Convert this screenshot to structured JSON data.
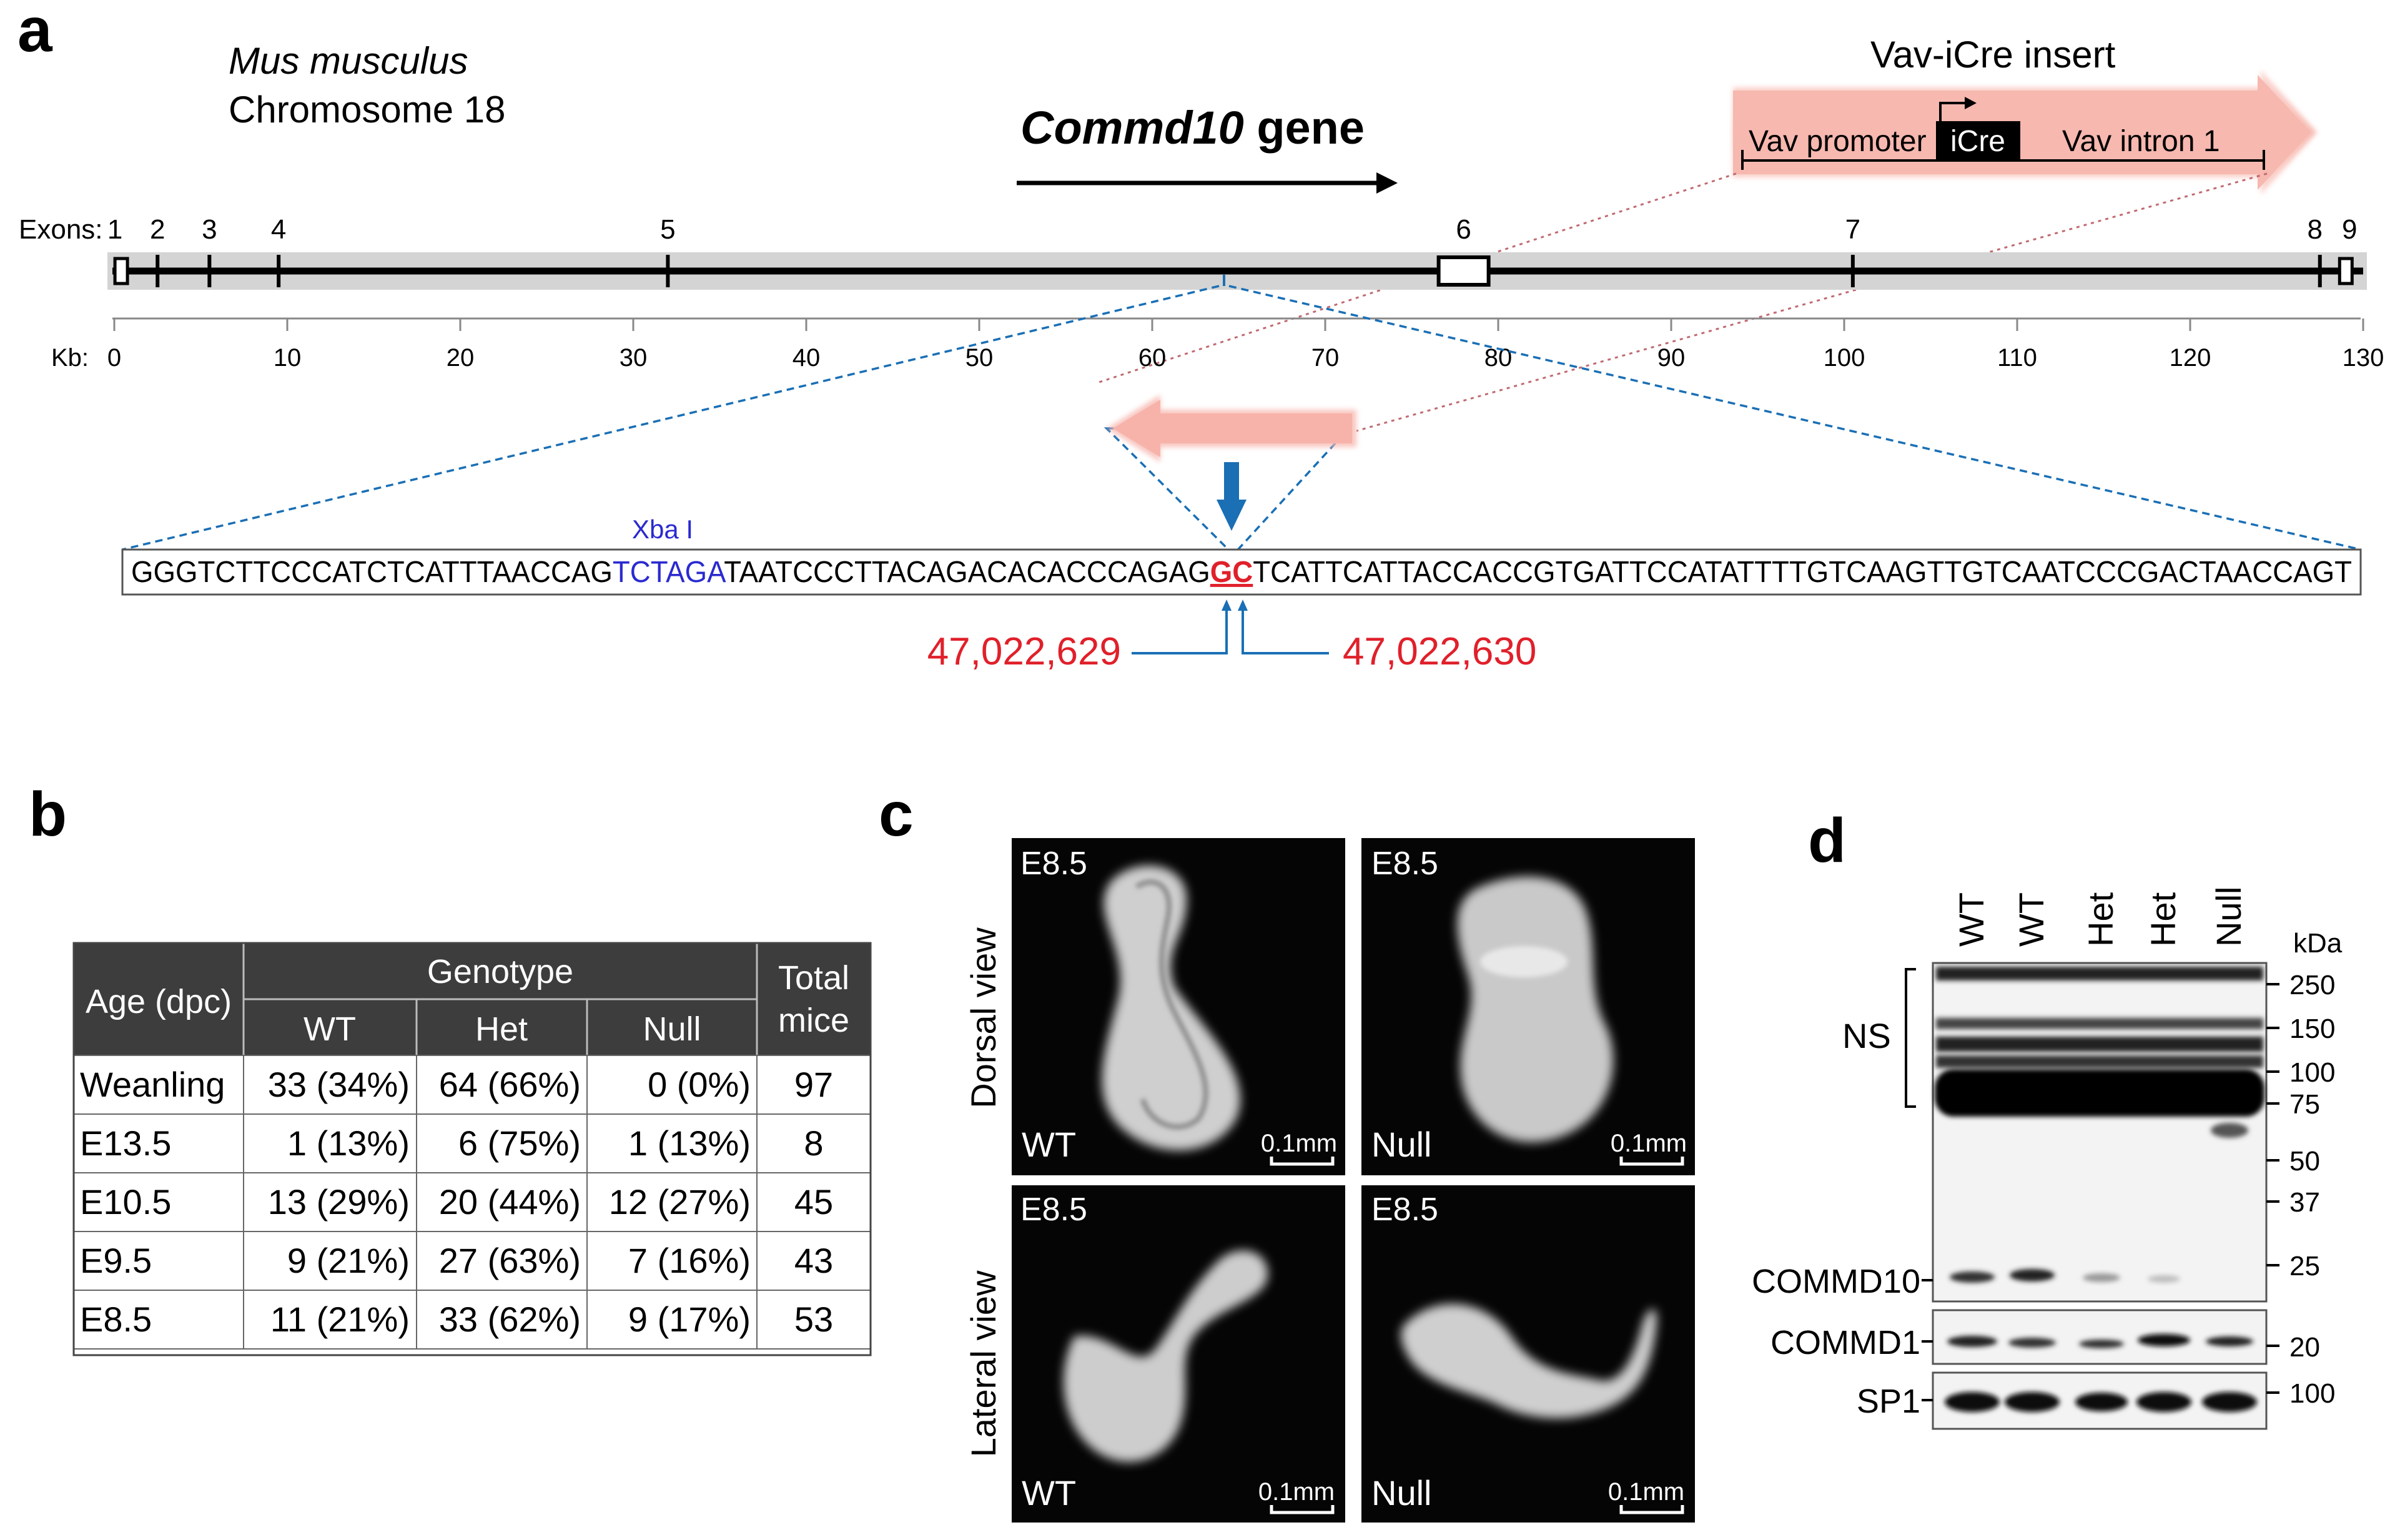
{
  "panels": {
    "a": "a",
    "b": "b",
    "c": "c",
    "d": "d"
  },
  "panel_a": {
    "species": "Mus musculus",
    "chromosome": "Chromosome 18",
    "gene_name": "Commd10",
    "gene_suffix": " gene",
    "insert_title": "Vav-iCre insert",
    "insert_parts": {
      "promoter": "Vav promoter",
      "icre": "iCre",
      "intron": "Vav intron 1"
    },
    "exons_label": "Exons:",
    "exons": [
      {
        "label": "1",
        "kb": 0.4
      },
      {
        "label": "2",
        "kb": 2.5
      },
      {
        "label": "3",
        "kb": 5.5
      },
      {
        "label": "4",
        "kb": 9.5
      },
      {
        "label": "5",
        "kb": 32
      },
      {
        "label": "6",
        "kb": 78
      },
      {
        "label": "7",
        "kb": 100.5
      },
      {
        "label": "8",
        "kb": 127.5
      },
      {
        "label": "9",
        "kb": 129
      }
    ],
    "kb_label": "Kb:",
    "kb_ticks": [
      "0",
      "10",
      "20",
      "30",
      "40",
      "50",
      "60",
      "70",
      "80",
      "90",
      "100",
      "110",
      "120",
      "130"
    ],
    "site_label": "Xba I",
    "sequence": {
      "before": "GGGTCTTCCCATCTCATTTAACCAG",
      "site": "TCTAGA",
      "middle": "TAATCCCTTACAGACACACCCAGAG",
      "cut": "GC",
      "after": "TCATTCATTACCACCGTGATTCCATATTTTGTCAAGTTGTCAATCCCGACTAACCAGT"
    },
    "coords": {
      "left": "47,022,629",
      "right": "47,022,630"
    },
    "colors": {
      "red": "#e0202a",
      "blue": "#1a6fb5",
      "pink": "#f7b8b0",
      "grey": "#d4d4d4"
    }
  },
  "panel_b": {
    "header": {
      "age": "Age (dpc)",
      "genotype": "Genotype",
      "wt": "WT",
      "het": "Het",
      "null": "Null",
      "total": "Total mice"
    },
    "rows": [
      {
        "age": "Weanling",
        "wt": "33 (34%)",
        "het": "64 (66%)",
        "null": "0   (0%)",
        "total": "97"
      },
      {
        "age": "E13.5",
        "wt": "1 (13%)",
        "het": "6 (75%)",
        "null": "1 (13%)",
        "total": "8"
      },
      {
        "age": "E10.5",
        "wt": "13 (29%)",
        "het": "20 (44%)",
        "null": "12 (27%)",
        "total": "45"
      },
      {
        "age": "E9.5",
        "wt": "9 (21%)",
        "het": "27 (63%)",
        "null": "7 (16%)",
        "total": "43"
      },
      {
        "age": "E8.5",
        "wt": "11 (21%)",
        "het": "33 (62%)",
        "null": "9 (17%)",
        "total": "53"
      }
    ]
  },
  "panel_c": {
    "views": [
      "Dorsal view",
      "Lateral view"
    ],
    "stage": "E8.5",
    "genotypes": [
      "WT",
      "Null"
    ],
    "scale": "0.1mm"
  },
  "panel_d": {
    "lanes": [
      "WT",
      "WT",
      "Het",
      "Het",
      "Null"
    ],
    "unit": "kDa",
    "markers_top": [
      "250",
      "150",
      "100",
      "75",
      "50",
      "37",
      "25"
    ],
    "marker_commd1": "20",
    "marker_sp1": "100",
    "labels": {
      "ns": "NS",
      "commd10": "COMMD10",
      "commd1": "COMMD1",
      "sp1": "SP1"
    }
  }
}
